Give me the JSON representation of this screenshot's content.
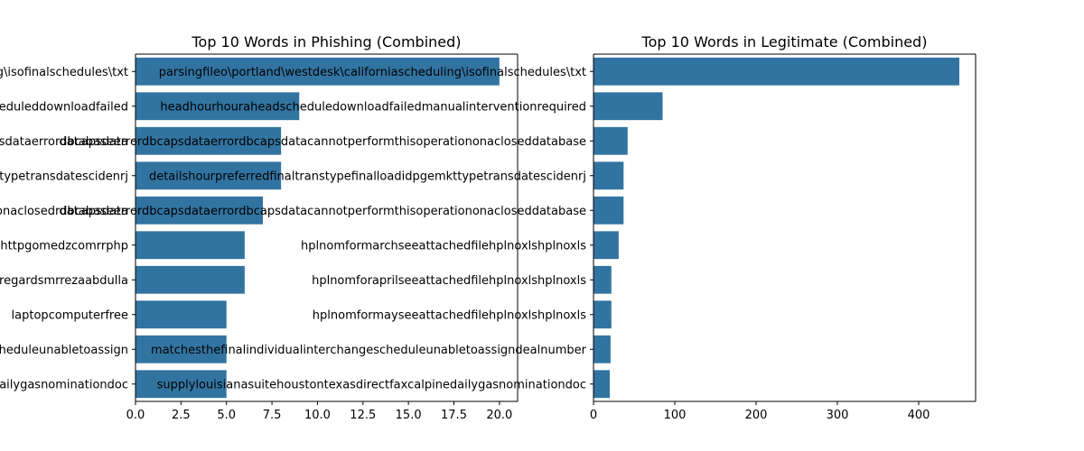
{
  "chart_data": [
    {
      "type": "bar",
      "orientation": "horizontal",
      "title": "Top 10 Words in Phishing (Combined)",
      "color": "#3274a1",
      "categories": [
        "detectedlogmessageparsingfileo\\portland\\westdesk\\californiascheduling\\isofinalschedules\\txt",
        "unauthorizedaccessadjustrateddemomanualinterventionrequiredheadhourhouraheadscheduleddownloadfailed",
        "datacannotperformthisoperationonaclosedwindatabaseerrordbcapsdataerrordbcapsdata",
        "finaltranstypefinalloaddetailsconditionalhourpreferredidpgemkttypetransdatescidenrj",
        "windowsdatabaseerrordbcapsdatacannotperformthisoperationonaclosedrdbcapsdata",
        "httpgomedzcomrrphp",
        "regardsmrrezaabdulla",
        "laptopcomputerfree",
        "conflicdetectedforhourdealnumberreferencestheindividualinterchangescheduleunabletoassign",
        "calpinecorporationgasnominationsupplylouisianasuitehoustontexasdirectfaxcalpinedailygasnominationdoc"
      ],
      "values": [
        20,
        9,
        8,
        8,
        7,
        6,
        6,
        5,
        5,
        5
      ],
      "xlim": [
        0,
        21
      ],
      "xticks": [
        "0.0",
        "2.5",
        "5.0",
        "7.5",
        "10.0",
        "12.5",
        "15.0",
        "17.5",
        "20.0"
      ]
    },
    {
      "type": "bar",
      "orientation": "horizontal",
      "title": "Top 10 Words in Legitimate (Combined)",
      "color": "#3274a1",
      "categories": [
        "parsingfileo\\portland\\westdesk\\californiascheduling\\isofinalschedules\\txt",
        "headhourhouraheadscheduledownloadfailedmanualinterventionrequired",
        "databaseerrordbcapsdataerrordbcapsdatacannotperformthisoperationonacloseddatabase",
        "detailshourpreferredfinaltranstypefinalloadidpgemkttypetransdatescidenrj",
        "databaseerrordbcapsdataerrordbcapsdatacannotperformthisoperationonacloseddatabase",
        "hplnomformarchseeattachedfilehplnoxlshplnoxls",
        "hplnomforaprilseeattachedfilehplnoxlshplnoxls",
        "hplnomformayseeattachedfilehplnoxlshplnoxls",
        "matchesthefinalindividualinterchangescheduleunabletoassigndealnumber",
        "supplylouisianasuitehoustontexasdirectfaxcalpinedailygasnominationdoc"
      ],
      "values": [
        450,
        85,
        42,
        37,
        37,
        31,
        22,
        22,
        21,
        20
      ],
      "xlim": [
        0,
        470
      ],
      "xticks": [
        "0",
        "100",
        "200",
        "300",
        "400"
      ]
    }
  ]
}
